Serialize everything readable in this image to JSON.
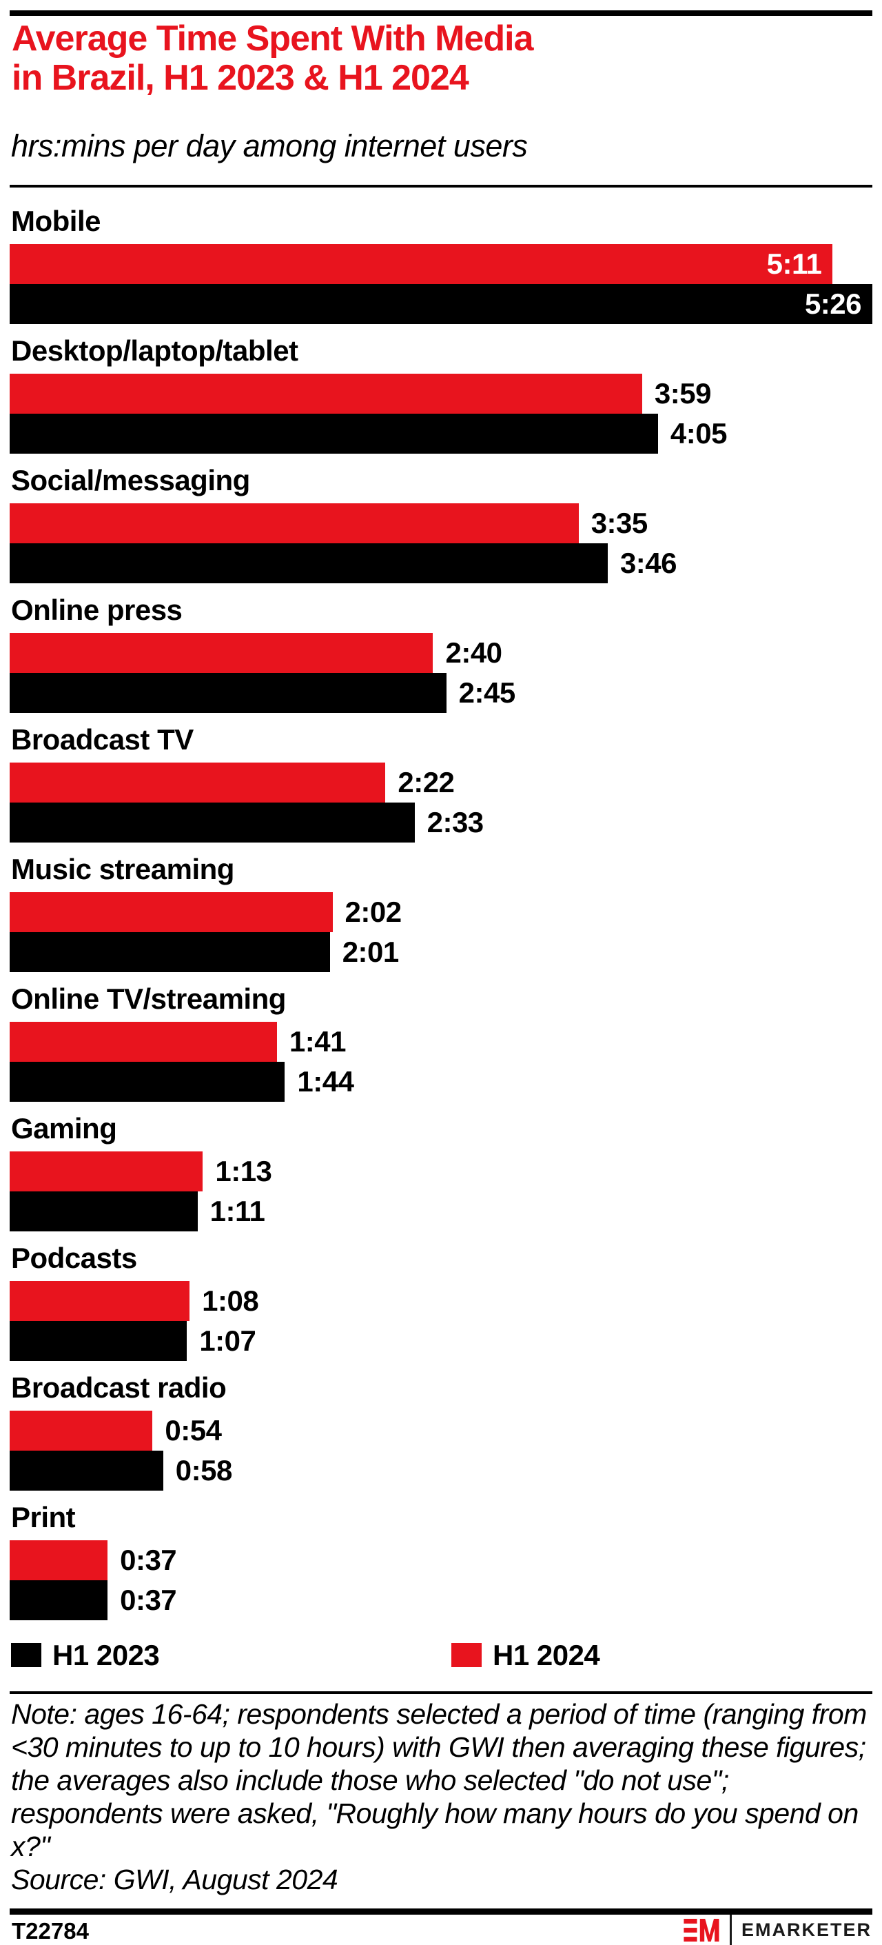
{
  "title_line1": "Average Time Spent With Media",
  "title_line2": "in Brazil, H1 2023 & H1 2024",
  "subtitle": "hrs:mins per day among internet users",
  "colors": {
    "accent_red": "#E8141E",
    "black": "#000000",
    "value_inside_text": "#ffffff"
  },
  "chart_data": {
    "type": "bar",
    "orientation": "horizontal",
    "unit": "hrs:mins per day",
    "max_minutes": 326,
    "categories": [
      "Mobile",
      "Desktop/laptop/tablet",
      "Social/messaging",
      "Online press",
      "Broadcast TV",
      "Music streaming",
      "Online TV/streaming",
      "Gaming",
      "Podcasts",
      "Broadcast radio",
      "Print"
    ],
    "series": [
      {
        "name": "H1 2024",
        "color": "#E8141E",
        "values": [
          "5:11",
          "3:59",
          "3:35",
          "2:40",
          "2:22",
          "2:02",
          "1:41",
          "1:13",
          "1:08",
          "0:54",
          "0:37"
        ],
        "values_minutes": [
          311,
          239,
          215,
          160,
          142,
          122,
          101,
          73,
          68,
          54,
          37
        ]
      },
      {
        "name": "H1 2023",
        "color": "#000000",
        "values": [
          "5:26",
          "4:05",
          "3:46",
          "2:45",
          "2:33",
          "2:01",
          "1:44",
          "1:11",
          "1:07",
          "0:58",
          "0:37"
        ],
        "values_minutes": [
          326,
          245,
          226,
          165,
          153,
          121,
          104,
          71,
          67,
          58,
          37
        ]
      }
    ],
    "bar_order": [
      "H1 2024",
      "H1 2023"
    ],
    "legend_position": "bottom",
    "grid": false
  },
  "legend": [
    {
      "label": "H1 2023",
      "color": "#000000"
    },
    {
      "label": "H1 2024",
      "color": "#E8141E"
    }
  ],
  "note": "Note: ages 16-64; respondents selected a period of time (ranging from <30 minutes to up to 10 hours) with GWI then averaging these figures; the averages also include those who selected \"do not use\"; respondents were asked, \"Roughly how many hours do you spend on x?\"",
  "source": "Source: GWI, August 2024",
  "footer": {
    "chart_id": "T22784",
    "brand": "EMARKETER",
    "logo_monogram": "EM"
  }
}
